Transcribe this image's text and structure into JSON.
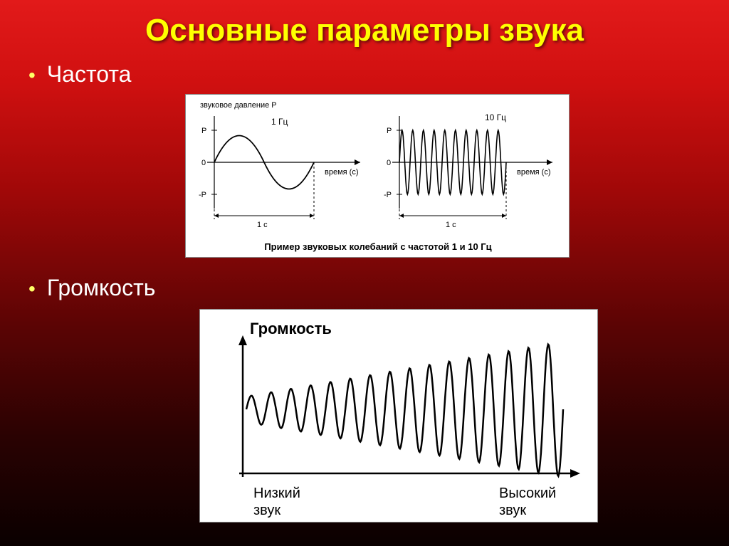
{
  "title": "Основные параметры звука",
  "bullets": {
    "frequency": "Частота",
    "loudness": "Громкость"
  },
  "freq_diagram": {
    "top_label": "звуковое давление P",
    "caption": "Пример звуковых колебаний с частотой 1 и 10 Гц",
    "y_pos": "P",
    "y_zero": "0",
    "y_neg": "-P",
    "x_label": "время (с)",
    "span_label": "1 с",
    "left": {
      "freq_label": "1 Гц",
      "cycles": 1
    },
    "right": {
      "freq_label": "10 Гц",
      "cycles": 10
    },
    "axis_color": "#000000",
    "wave_color": "#000000",
    "bg": "#ffffff",
    "font_size_small": 11,
    "font_size_caption": 13
  },
  "loud_diagram": {
    "title": "Громкость",
    "low_label": "Низкий\nзвук",
    "high_label": "Высокий\nзвук",
    "axis_color": "#000000",
    "wave_color": "#000000",
    "stroke_width": 2.5,
    "bg": "#ffffff",
    "title_fontsize": 22,
    "label_fontsize": 20,
    "cycles": 16,
    "amp_start": 18,
    "amp_end": 95
  },
  "colors": {
    "title": "#ffff00",
    "text": "#ffffff",
    "bullet": "#ffff66"
  }
}
